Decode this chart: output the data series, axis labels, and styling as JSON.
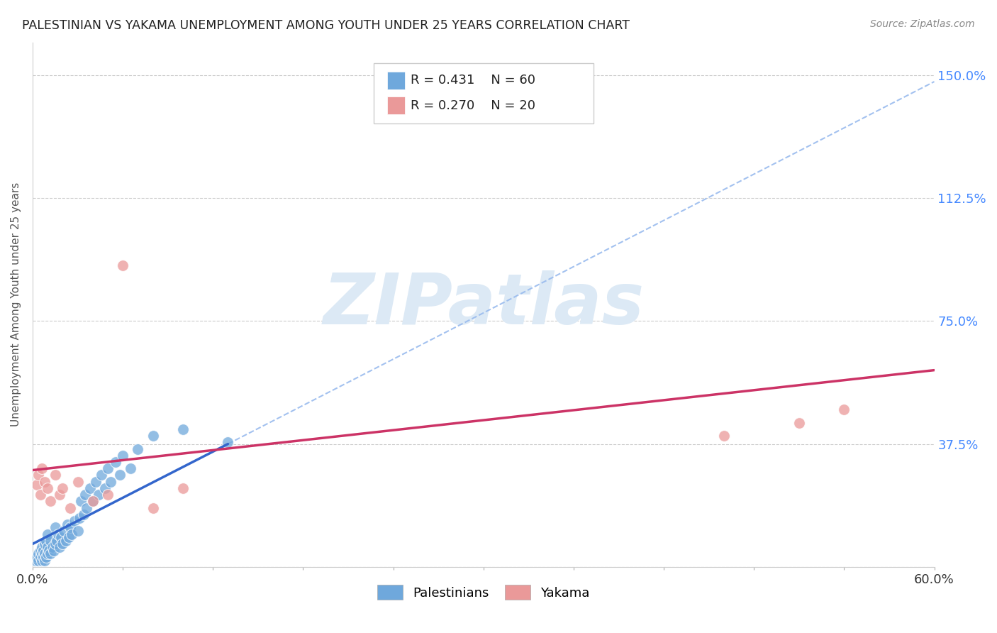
{
  "title": "PALESTINIAN VS YAKAMA UNEMPLOYMENT AMONG YOUTH UNDER 25 YEARS CORRELATION CHART",
  "source": "Source: ZipAtlas.com",
  "ylabel": "Unemployment Among Youth under 25 years",
  "xlim": [
    0.0,
    0.6
  ],
  "ylim": [
    0.0,
    1.6
  ],
  "xtick_positions": [
    0.0,
    0.06,
    0.12,
    0.18,
    0.24,
    0.3,
    0.36,
    0.42,
    0.48,
    0.54,
    0.6
  ],
  "xtick_labels": [
    "0.0%",
    "",
    "",
    "",
    "",
    "",
    "",
    "",
    "",
    "",
    "60.0%"
  ],
  "ytick_positions": [
    0.0,
    0.375,
    0.75,
    1.125,
    1.5
  ],
  "ytick_labels": [
    "",
    "37.5%",
    "75.0%",
    "112.5%",
    "150.0%"
  ],
  "r_blue": 0.431,
  "n_blue": 60,
  "r_pink": 0.27,
  "n_pink": 20,
  "blue_color": "#6fa8dc",
  "pink_color": "#ea9999",
  "blue_line_color": "#3366cc",
  "pink_line_color": "#cc3366",
  "dash_color": "#99bbee",
  "watermark_text": "ZIPatlas",
  "watermark_color": "#dce9f5",
  "palestinians_x": [
    0.002,
    0.003,
    0.004,
    0.004,
    0.005,
    0.005,
    0.006,
    0.006,
    0.006,
    0.007,
    0.007,
    0.008,
    0.008,
    0.008,
    0.009,
    0.009,
    0.01,
    0.01,
    0.01,
    0.011,
    0.012,
    0.012,
    0.013,
    0.014,
    0.015,
    0.015,
    0.016,
    0.017,
    0.018,
    0.019,
    0.02,
    0.021,
    0.022,
    0.023,
    0.024,
    0.025,
    0.026,
    0.028,
    0.03,
    0.031,
    0.032,
    0.034,
    0.035,
    0.036,
    0.038,
    0.04,
    0.042,
    0.044,
    0.046,
    0.048,
    0.05,
    0.052,
    0.055,
    0.058,
    0.06,
    0.065,
    0.07,
    0.08,
    0.1,
    0.13
  ],
  "palestinians_y": [
    0.02,
    0.03,
    0.02,
    0.04,
    0.03,
    0.05,
    0.02,
    0.04,
    0.06,
    0.03,
    0.05,
    0.02,
    0.04,
    0.07,
    0.03,
    0.08,
    0.04,
    0.06,
    0.1,
    0.05,
    0.04,
    0.08,
    0.06,
    0.05,
    0.07,
    0.12,
    0.08,
    0.1,
    0.06,
    0.09,
    0.07,
    0.11,
    0.08,
    0.13,
    0.09,
    0.12,
    0.1,
    0.14,
    0.11,
    0.15,
    0.2,
    0.16,
    0.22,
    0.18,
    0.24,
    0.2,
    0.26,
    0.22,
    0.28,
    0.24,
    0.3,
    0.26,
    0.32,
    0.28,
    0.34,
    0.3,
    0.36,
    0.4,
    0.42,
    0.38
  ],
  "yakama_x": [
    0.003,
    0.004,
    0.005,
    0.006,
    0.008,
    0.01,
    0.012,
    0.015,
    0.018,
    0.02,
    0.025,
    0.03,
    0.04,
    0.05,
    0.06,
    0.08,
    0.1,
    0.46,
    0.51,
    0.54
  ],
  "yakama_y": [
    0.25,
    0.28,
    0.22,
    0.3,
    0.26,
    0.24,
    0.2,
    0.28,
    0.22,
    0.24,
    0.18,
    0.26,
    0.2,
    0.22,
    0.92,
    0.18,
    0.24,
    0.4,
    0.44,
    0.48
  ],
  "blue_line_x": [
    0.0,
    0.13
  ],
  "blue_line_y": [
    0.07,
    0.375
  ],
  "dash_line_x": [
    0.13,
    0.6
  ],
  "dash_line_y": [
    0.375,
    1.48
  ],
  "pink_line_x": [
    0.0,
    0.6
  ],
  "pink_line_y": [
    0.295,
    0.6
  ]
}
